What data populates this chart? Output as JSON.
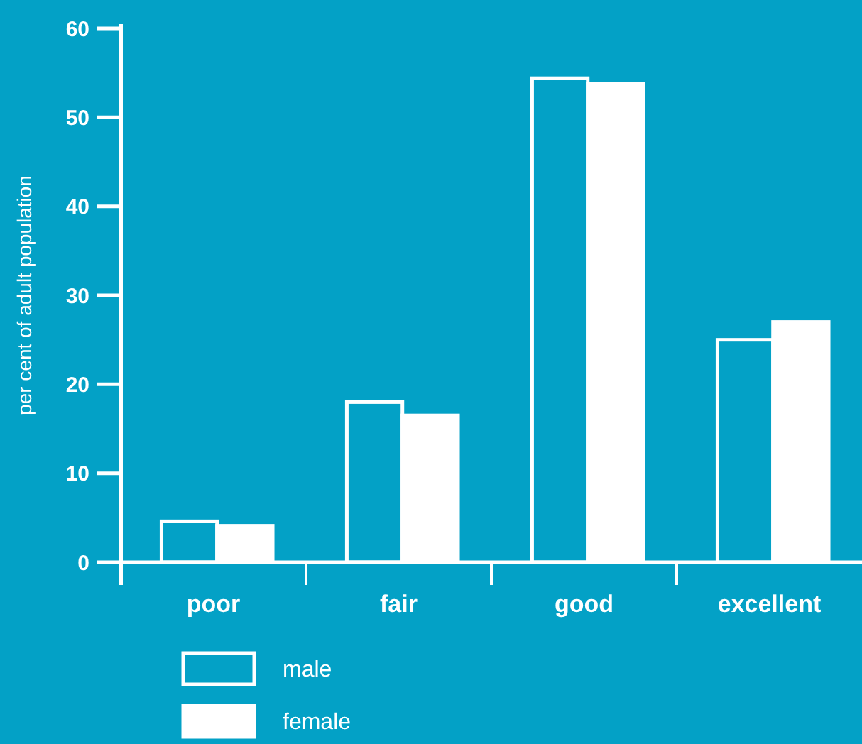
{
  "chart_data": {
    "type": "bar",
    "ylabel": "per cent of adult population",
    "categories": [
      "poor",
      "fair",
      "good",
      "excellent"
    ],
    "series": [
      {
        "name": "male",
        "color": "#03a1c6",
        "values": [
          4.6,
          18.0,
          54.4,
          25.0
        ]
      },
      {
        "name": "female",
        "color": "#ffffff",
        "values": [
          4.1,
          16.5,
          53.8,
          27.0
        ]
      }
    ],
    "ylim": [
      0,
      60
    ],
    "yticks": [
      0,
      10,
      20,
      30,
      40,
      50,
      60
    ],
    "legend": "bottom left"
  }
}
